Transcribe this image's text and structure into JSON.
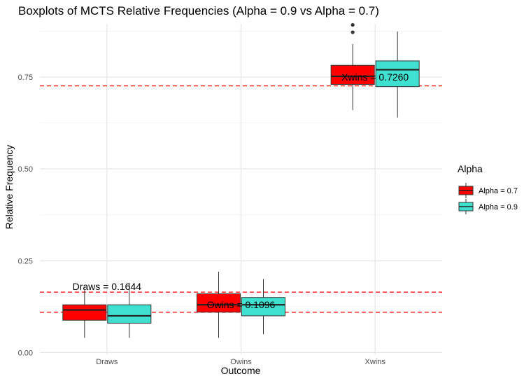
{
  "chart_data": {
    "type": "box",
    "title": "Boxplots of MCTS Relative Frequencies (Alpha = 0.9 vs Alpha = 0.7)",
    "xlabel": "Outcome",
    "ylabel": "Relative Frequency",
    "categories": [
      "Draws",
      "Owins",
      "Xwins"
    ],
    "ylim": [
      -0.005,
      0.895
    ],
    "yticks": [
      0.0,
      0.25,
      0.5,
      0.75
    ],
    "ytick_labels": [
      "0.00",
      "0.25",
      "0.50",
      "0.75"
    ],
    "grid": true,
    "legend": {
      "title": "Alpha",
      "position": "right"
    },
    "series": [
      {
        "name": "Alpha = 0.7",
        "color": "#ff0000",
        "boxes": [
          {
            "category": "Draws",
            "min": 0.04,
            "q1": 0.088,
            "median": 0.116,
            "q3": 0.13,
            "max": 0.17,
            "outliers": []
          },
          {
            "category": "Owins",
            "min": 0.04,
            "q1": 0.11,
            "median": 0.13,
            "q3": 0.16,
            "max": 0.22,
            "outliers": []
          },
          {
            "category": "Xwins",
            "min": 0.66,
            "q1": 0.73,
            "median": 0.752,
            "q3": 0.782,
            "max": 0.84,
            "outliers": [
              0.872,
              0.892
            ]
          }
        ]
      },
      {
        "name": "Alpha = 0.9",
        "color": "#40e0d0",
        "boxes": [
          {
            "category": "Draws",
            "min": 0.04,
            "q1": 0.08,
            "median": 0.1,
            "q3": 0.13,
            "max": 0.19,
            "outliers": []
          },
          {
            "category": "Owins",
            "min": 0.05,
            "q1": 0.1,
            "median": 0.13,
            "q3": 0.15,
            "max": 0.2,
            "outliers": []
          },
          {
            "category": "Xwins",
            "min": 0.64,
            "q1": 0.724,
            "median": 0.77,
            "q3": 0.794,
            "max": 0.874,
            "outliers": []
          }
        ]
      }
    ],
    "reference_lines": [
      {
        "value": 0.726,
        "color": "#ff0000",
        "style": "dashed"
      },
      {
        "value": 0.1644,
        "color": "#ff0000",
        "style": "dashed"
      },
      {
        "value": 0.1096,
        "color": "#ff0000",
        "style": "dashed"
      }
    ],
    "annotations": [
      {
        "text": "Xwins = 0.7260",
        "category": "Xwins",
        "y": 0.75
      },
      {
        "text": "Draws = 0.1644",
        "category": "Draws",
        "y": 0.18
      },
      {
        "text": "Owins = 0.1096",
        "category": "Owins",
        "y": 0.13
      }
    ]
  }
}
